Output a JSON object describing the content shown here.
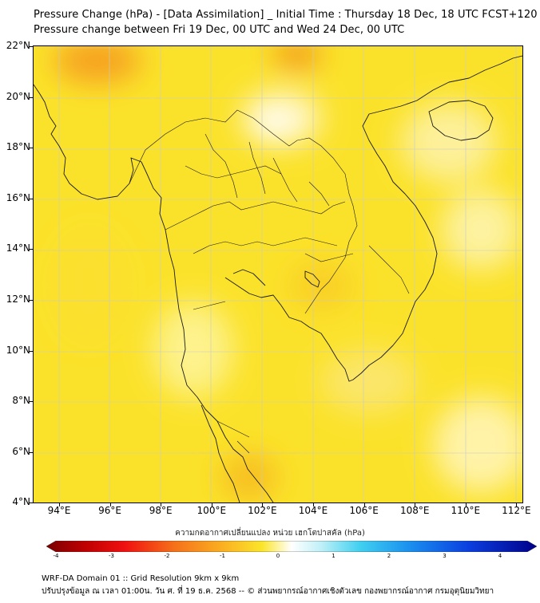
{
  "header": {
    "title_line1": "Pressure Change (hPa) - [Data Assimilation] _ Initial Time : Thursday 18 Dec, 18 UTC FCST+120",
    "title_line2": "Pressure change between Fri 19 Dec, 00 UTC and Wed 24 Dec, 00 UTC"
  },
  "map": {
    "lat_labels": [
      "22°N",
      "20°N",
      "18°N",
      "16°N",
      "14°N",
      "12°N",
      "10°N",
      "8°N",
      "6°N",
      "4°N"
    ],
    "lon_labels": [
      "94°E",
      "96°E",
      "98°E",
      "100°E",
      "102°E",
      "104°E",
      "106°E",
      "108°E",
      "110°E",
      "112°E"
    ],
    "lat_range": [
      4,
      22
    ],
    "lon_range": [
      93,
      112.3
    ]
  },
  "colorbar": {
    "title": "ความกดอากาศเปลี่ยนแปลง หน่วย เฮกโตปาสคัล (hPa)",
    "tick_labels": [
      "-4",
      "-3",
      "-2",
      "-1",
      "0",
      "1",
      "2",
      "3",
      "4"
    ],
    "range": [
      -4,
      4
    ]
  },
  "footer": {
    "line1": "WRF-DA Domain 01 :: Grid Resolution 9km x 9km",
    "line2": "ปรับปรุงข้อมูล ณ เวลา 01:00น. วัน ศ. ที่ 19 ธ.ค. 2568 -- © ส่วนพยากรณ์อากาศเชิงตัวเลข กองพยากรณ์อากาศ กรมอุตุนิยมวิทยา"
  }
}
